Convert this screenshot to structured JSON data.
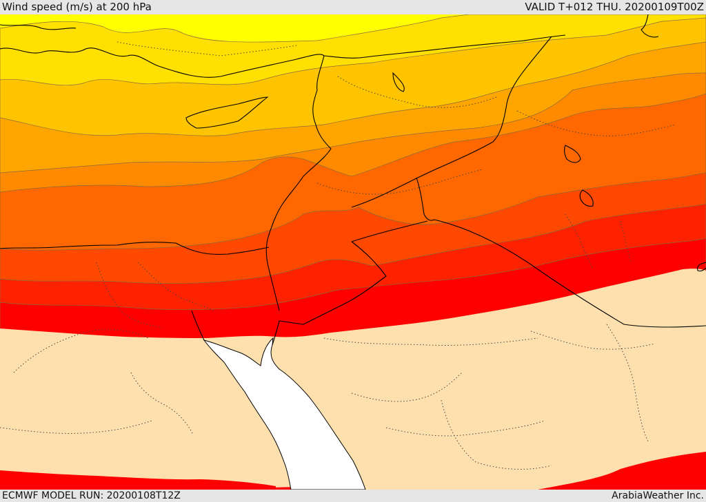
{
  "header": {
    "title": "Wind speed (m/s) at 200 hPa",
    "valid": "VALID T+012 THU. 20200109T00Z"
  },
  "footer": {
    "model_run": "ECMWF MODEL RUN: 20200108T12Z",
    "credit": "ArabiaWeather Inc."
  },
  "palette": {
    "yellow": "#ffff00",
    "yellow_gold": "#ffe000",
    "gold": "#ffc400",
    "orange_light": "#ffa500",
    "orange": "#ff8a00",
    "orange_dark": "#ff6800",
    "red_orange": "#ff4800",
    "red_light": "#ff2200",
    "red": "#ff0000",
    "calm": "#fde0ad",
    "sea": "#ffffff"
  }
}
